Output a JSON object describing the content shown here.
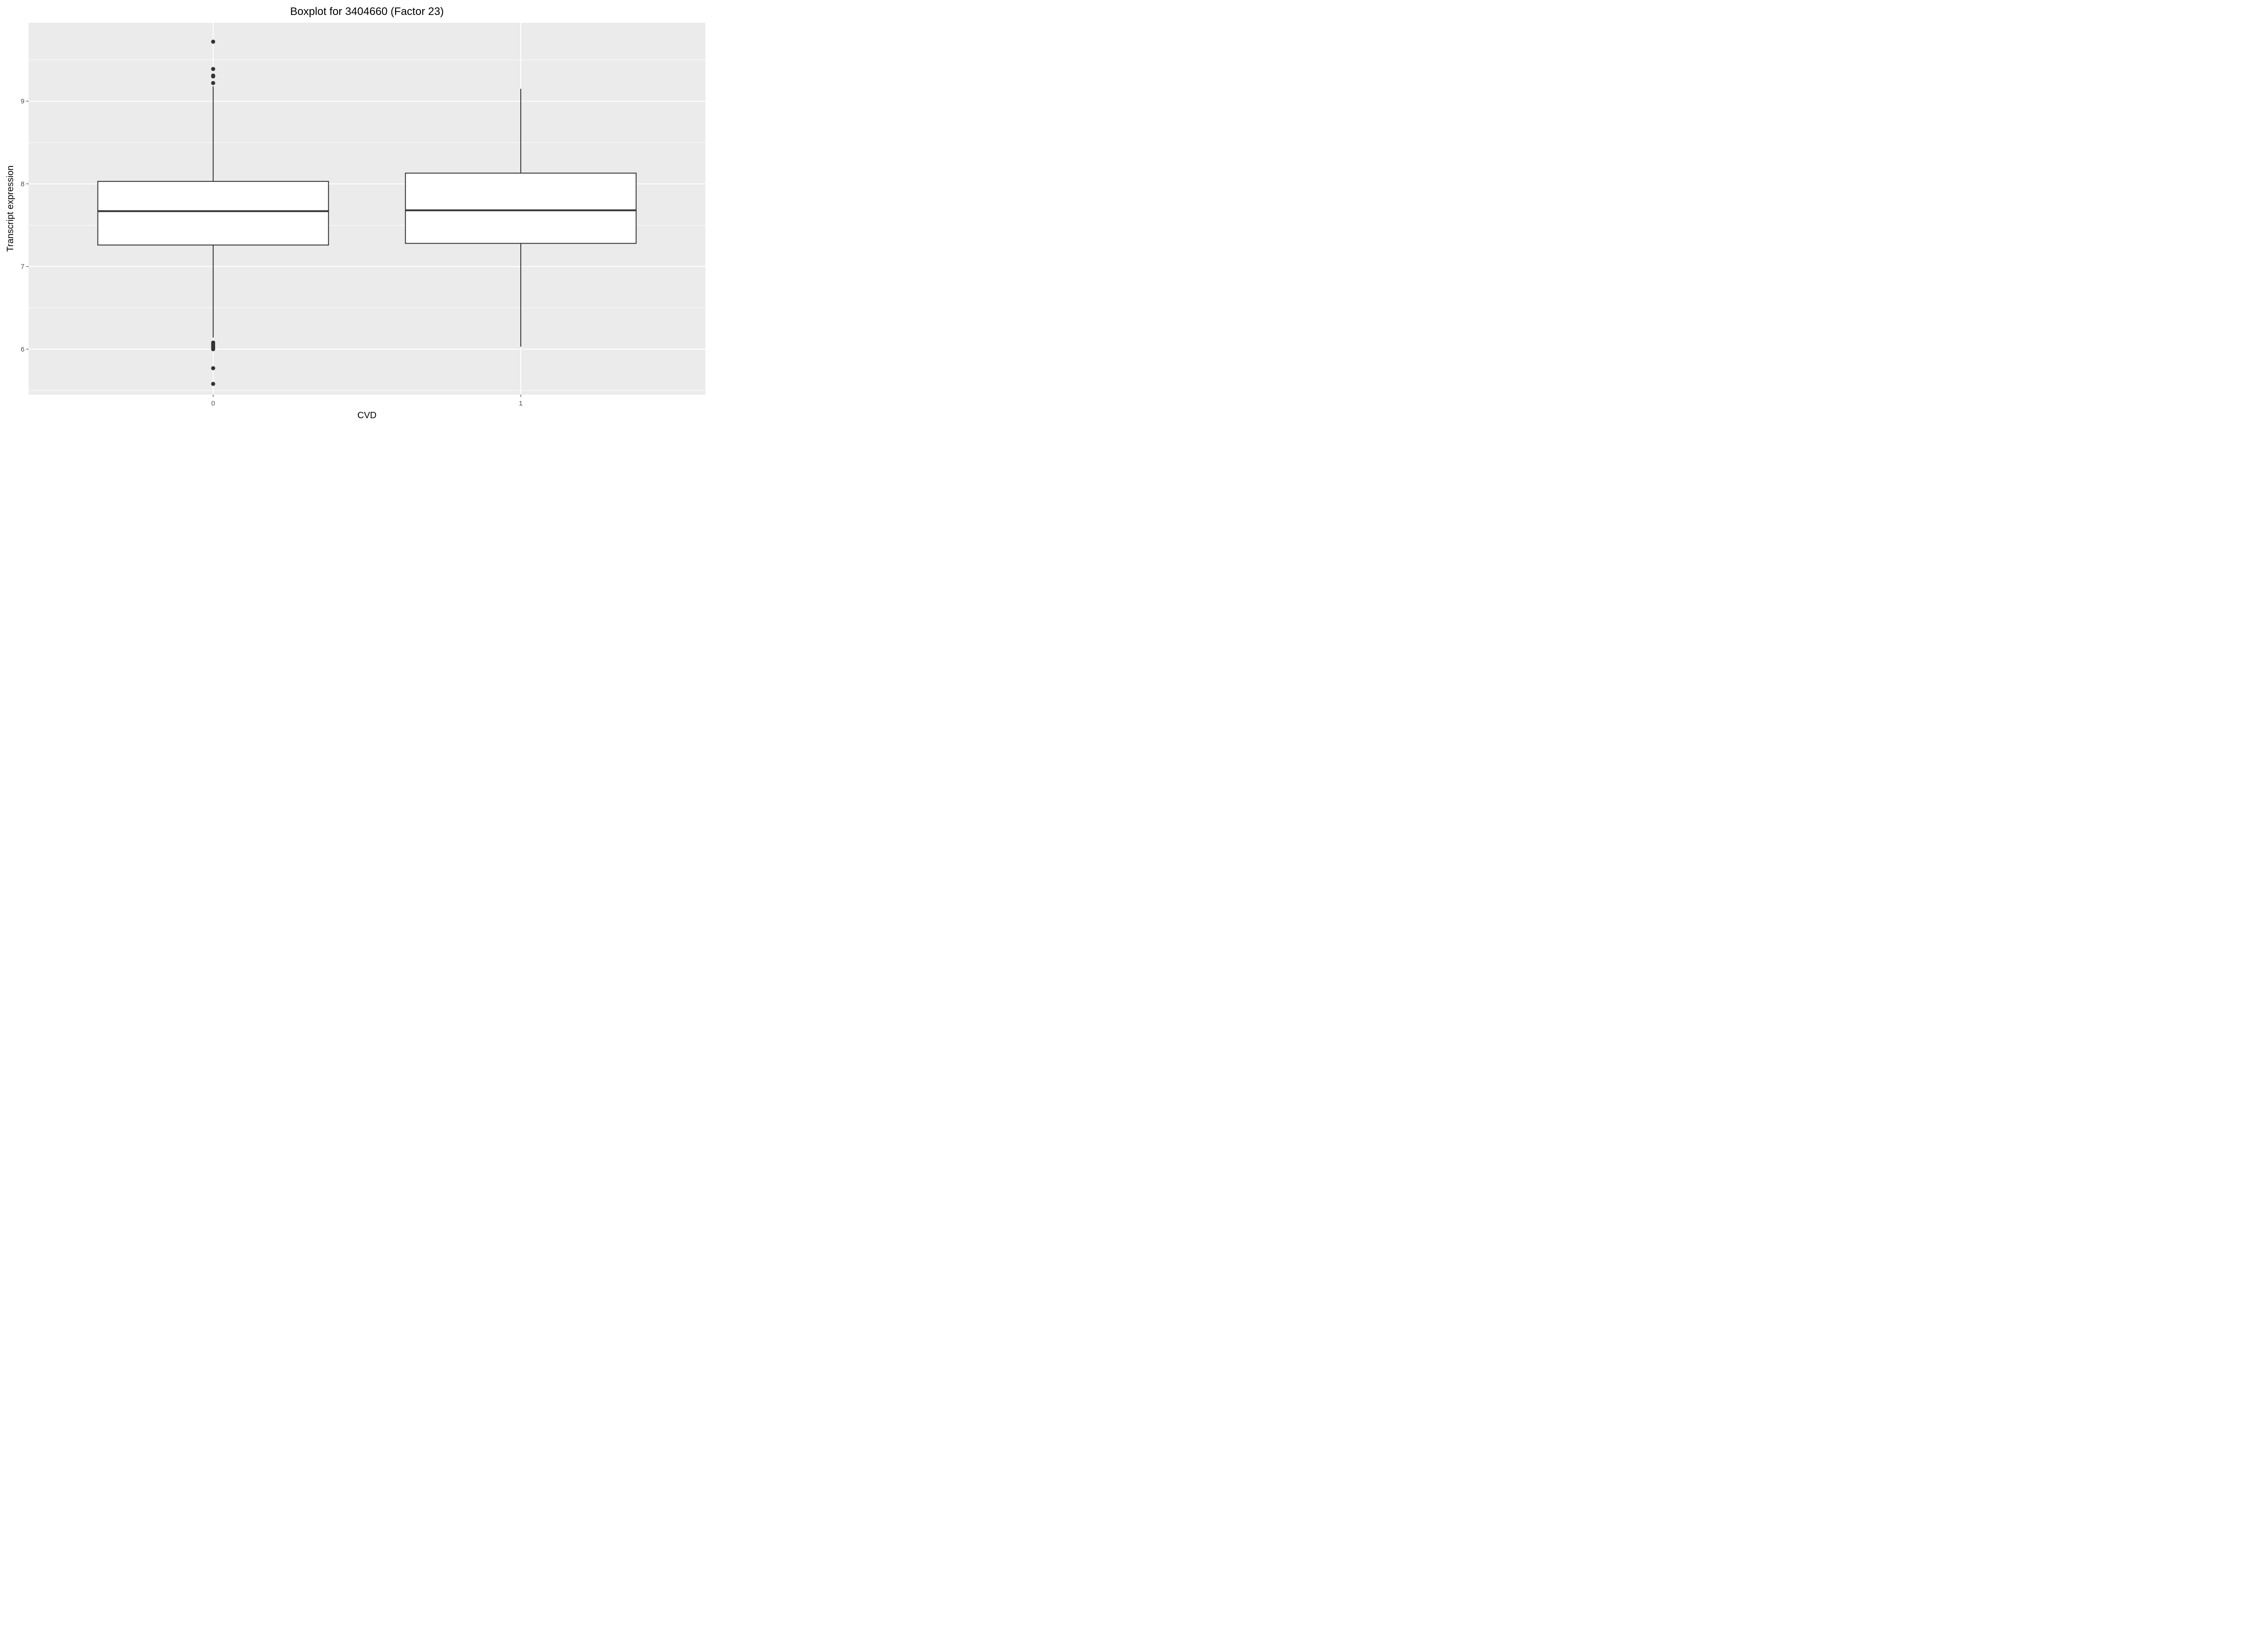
{
  "chart_data": {
    "type": "boxplot",
    "title": "Boxplot for 3404660 (Factor 23)",
    "xlabel": "CVD",
    "ylabel": "Transcript expression",
    "categories": [
      "0",
      "1"
    ],
    "ylim": [
      5.45,
      9.95
    ],
    "yticks": [
      6,
      7,
      8,
      9
    ],
    "grid": true,
    "boxes": [
      {
        "category": "0",
        "whisker_low": 6.14,
        "q1": 7.26,
        "median": 7.67,
        "q3": 8.03,
        "whisker_high": 9.18,
        "outliers": [
          9.72,
          9.39,
          9.31,
          9.3,
          9.22,
          6.08,
          6.06,
          6.04,
          6.02,
          6.0,
          5.77,
          5.58
        ]
      },
      {
        "category": "1",
        "whisker_low": 6.03,
        "q1": 7.28,
        "median": 7.68,
        "q3": 8.13,
        "whisker_high": 9.15,
        "outliers": []
      }
    ],
    "colors": {
      "panel": "#EBEBEB",
      "grid": "#FFFFFF",
      "box_fill": "#FFFFFF",
      "box_line": "#333333",
      "tick_text": "#4D4D4D"
    }
  }
}
